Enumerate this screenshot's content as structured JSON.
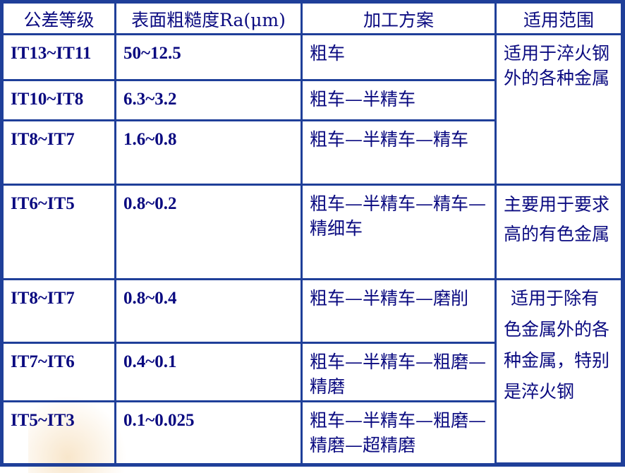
{
  "headers": [
    "公差等级",
    "表面粗糙度Ra(μm)",
    "加工方案",
    "适用范围"
  ],
  "rows": [
    {
      "grade": "IT13~IT11",
      "ra": "50~12.5",
      "method": "粗车"
    },
    {
      "grade": "IT10~IT8",
      "ra": "6.3~3.2",
      "method": "粗车—半精车"
    },
    {
      "grade": "IT8~IT7",
      "ra": "1.6~0.8",
      "method": "粗车—半精车—精车"
    },
    {
      "grade": "IT6~IT5",
      "ra": "0.8~0.2",
      "method": "粗车—半精车—精车—精细车"
    },
    {
      "grade": "IT8~IT7",
      "ra": "0.8~0.4",
      "method": "粗车—半精车—磨削"
    },
    {
      "grade": "IT7~IT6",
      "ra": "0.4~0.1",
      "method": "粗车—半精车—粗磨—精磨"
    },
    {
      "grade": "IT5~IT3",
      "ra": "0.1~0.025",
      "method": "粗车—半精车—粗磨—精磨—超精磨"
    }
  ],
  "scopes": [
    "适用于淬火钢外的各种金属",
    "主要用于要求高的有色金属",
    "适用于除有色金属外的各种金属，特别是淬火钢"
  ]
}
